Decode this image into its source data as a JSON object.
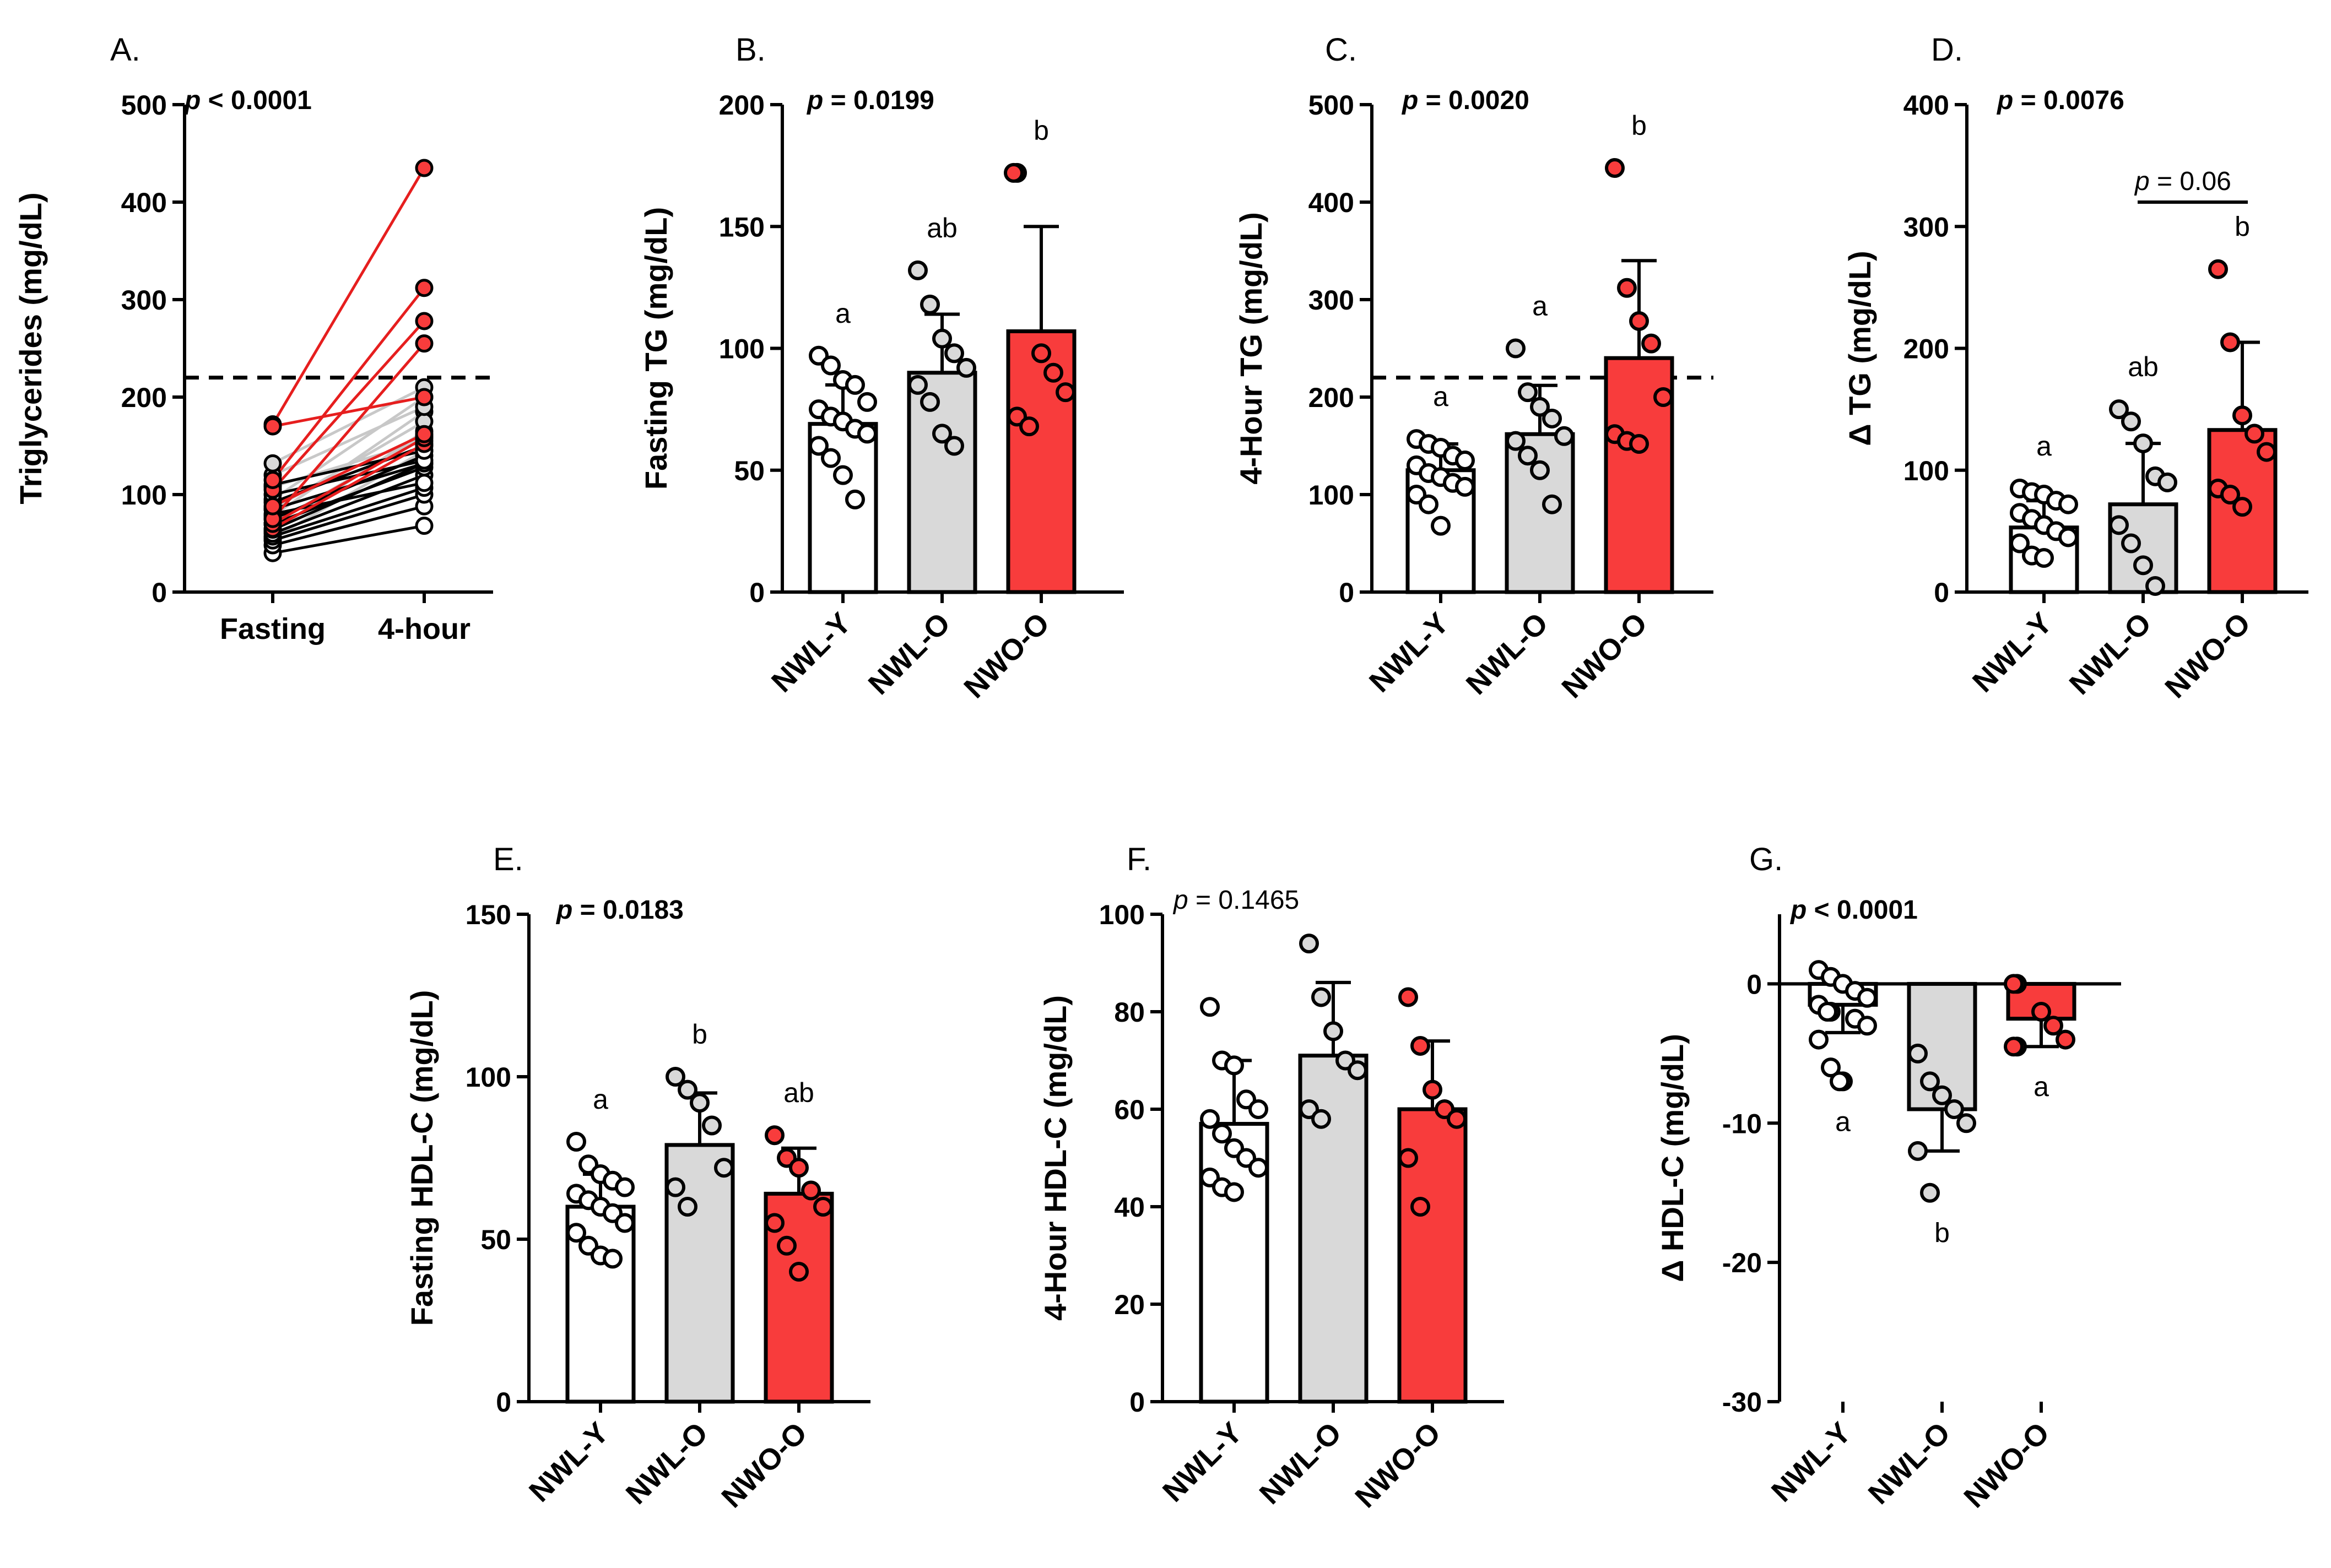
{
  "figure": {
    "colors": {
      "NWL-Y": "#ffffff",
      "NWL-O": "#d9d9d9",
      "NWO-O": "#f83c3c",
      "axis": "#000000",
      "line_dark": "#000000",
      "line_grey": "#c8c8c8",
      "line_red": "#e61e1e"
    }
  },
  "chart_data": [
    {
      "panel": "A.",
      "type": "line",
      "title": "",
      "ylabel": "Triglycerides (mg/dL)",
      "xlabel": "",
      "categories": [
        "Fasting",
        "4-hour"
      ],
      "ylim": [
        0,
        500
      ],
      "yticks": [
        0,
        100,
        200,
        300,
        400,
        500
      ],
      "p_text": "p < 0.0001",
      "p_bold": true,
      "reference_line": 220,
      "series": [
        {
          "group": "NWL-Y",
          "values": [
            [
              40,
              68
            ],
            [
              48,
              88
            ],
            [
              53,
              100
            ],
            [
              57,
              107
            ],
            [
              60,
              120
            ],
            [
              64,
              132
            ],
            [
              70,
              128
            ],
            [
              75,
              140
            ],
            [
              80,
              112
            ],
            [
              85,
              132
            ],
            [
              92,
              150
            ],
            [
              100,
              135
            ],
            [
              110,
              145
            ]
          ]
        },
        {
          "group": "NWL-O",
          "values": [
            [
              55,
              145
            ],
            [
              62,
              165
            ],
            [
              70,
              160
            ],
            [
              78,
              185
            ],
            [
              85,
              175
            ],
            [
              95,
              200
            ],
            [
              108,
              155
            ],
            [
              120,
              190
            ],
            [
              132,
              210
            ]
          ]
        },
        {
          "group": "NWO-O",
          "values": [
            [
              65,
              152
            ],
            [
              70,
              158
            ],
            [
              75,
              255
            ],
            [
              88,
              162
            ],
            [
              105,
              278
            ],
            [
              115,
              312
            ],
            [
              172,
              435
            ],
            [
              170,
              200
            ]
          ]
        }
      ]
    },
    {
      "panel": "B.",
      "type": "bar",
      "title": "",
      "ylabel": "Fasting TG (mg/dL)",
      "xlabel": "",
      "categories": [
        "NWL-Y",
        "NWL-O",
        "NWO-O"
      ],
      "ylim": [
        0,
        200
      ],
      "yticks": [
        0,
        50,
        100,
        150,
        200
      ],
      "p_text": "p = 0.0199",
      "p_bold": true,
      "series": [
        {
          "name": "NWL-Y",
          "mean": 69,
          "sd": 16,
          "letter": "a",
          "points": [
            97,
            93,
            87,
            85,
            78,
            75,
            72,
            70,
            67,
            65,
            60,
            55,
            48,
            38
          ]
        },
        {
          "name": "NWL-O",
          "mean": 90,
          "sd": 24,
          "letter": "ab",
          "points": [
            132,
            118,
            104,
            98,
            92,
            85,
            78,
            65,
            60
          ]
        },
        {
          "name": "NWO-O",
          "mean": 107,
          "sd": 43,
          "letter": "b",
          "points": [
            172,
            172,
            98,
            90,
            82,
            72,
            68
          ]
        }
      ]
    },
    {
      "panel": "C.",
      "type": "bar",
      "title": "",
      "ylabel": "4-Hour TG (mg/dL)",
      "xlabel": "",
      "categories": [
        "NWL-Y",
        "NWL-O",
        "NWO-O"
      ],
      "ylim": [
        0,
        500
      ],
      "yticks": [
        0,
        100,
        200,
        300,
        400,
        500
      ],
      "p_text": "p = 0.0020",
      "p_bold": true,
      "reference_line": 220,
      "series": [
        {
          "name": "NWL-Y",
          "mean": 125,
          "sd": 27,
          "letter": "a",
          "points": [
            157,
            152,
            148,
            140,
            135,
            130,
            122,
            118,
            112,
            108,
            100,
            90,
            68
          ]
        },
        {
          "name": "NWL-O",
          "mean": 162,
          "sd": 50,
          "letter": "a",
          "points": [
            250,
            205,
            190,
            178,
            160,
            155,
            140,
            125,
            90
          ]
        },
        {
          "name": "NWO-O",
          "mean": 240,
          "sd": 100,
          "letter": "b",
          "points": [
            435,
            312,
            278,
            255,
            200,
            162,
            155,
            152
          ]
        }
      ]
    },
    {
      "panel": "D.",
      "type": "bar",
      "title": "",
      "ylabel": "Δ TG (mg/dL)",
      "xlabel": "",
      "categories": [
        "NWL-Y",
        "NWL-O",
        "NWO-O"
      ],
      "ylim": [
        0,
        400
      ],
      "yticks": [
        0,
        100,
        200,
        300,
        400
      ],
      "p_text": "p = 0.0076",
      "p_bold": true,
      "comparison": {
        "from": "NWL-O",
        "to": "NWO-O",
        "text": "p = 0.06"
      },
      "series": [
        {
          "name": "NWL-Y",
          "mean": 53,
          "sd": 22,
          "letter": "a",
          "points": [
            85,
            82,
            80,
            75,
            72,
            65,
            60,
            55,
            50,
            45,
            40,
            30,
            28
          ]
        },
        {
          "name": "NWL-O",
          "mean": 72,
          "sd": 50,
          "letter": "ab",
          "points": [
            150,
            140,
            122,
            95,
            90,
            55,
            40,
            22,
            5
          ]
        },
        {
          "name": "NWO-O",
          "mean": 133,
          "sd": 72,
          "letter": "b",
          "points": [
            265,
            205,
            145,
            130,
            115,
            85,
            80,
            70
          ]
        }
      ]
    },
    {
      "panel": "E.",
      "type": "bar",
      "title": "",
      "ylabel": "Fasting HDL-C (mg/dL)",
      "xlabel": "",
      "categories": [
        "NWL-Y",
        "NWL-O",
        "NWO-O"
      ],
      "ylim": [
        0,
        150
      ],
      "yticks": [
        0,
        50,
        100,
        150
      ],
      "p_text": "p = 0.0183",
      "p_bold": true,
      "series": [
        {
          "name": "NWL-Y",
          "mean": 60,
          "sd": 10,
          "letter": "a",
          "points": [
            80,
            73,
            70,
            68,
            66,
            64,
            62,
            60,
            58,
            55,
            52,
            48,
            45,
            44
          ]
        },
        {
          "name": "NWL-O",
          "mean": 79,
          "sd": 16,
          "letter": "b",
          "points": [
            100,
            96,
            92,
            85,
            72,
            66,
            60
          ]
        },
        {
          "name": "NWO-O",
          "mean": 64,
          "sd": 14,
          "letter": "ab",
          "points": [
            82,
            75,
            72,
            65,
            60,
            55,
            48,
            40
          ]
        }
      ]
    },
    {
      "panel": "F.",
      "type": "bar",
      "title": "",
      "ylabel": "4-Hour HDL-C (mg/dL)",
      "xlabel": "",
      "categories": [
        "NWL-Y",
        "NWL-O",
        "NWO-O"
      ],
      "ylim": [
        0,
        100
      ],
      "yticks": [
        0,
        20,
        40,
        60,
        80,
        100
      ],
      "p_text": "p = 0.1465",
      "p_bold": false,
      "series": [
        {
          "name": "NWL-Y",
          "mean": 57,
          "sd": 13,
          "letter": "",
          "points": [
            81,
            70,
            69,
            62,
            60,
            58,
            55,
            52,
            50,
            48,
            46,
            44,
            43
          ]
        },
        {
          "name": "NWL-O",
          "mean": 71,
          "sd": 15,
          "letter": "",
          "points": [
            94,
            83,
            76,
            70,
            68,
            60,
            58
          ]
        },
        {
          "name": "NWO-O",
          "mean": 60,
          "sd": 14,
          "letter": "",
          "points": [
            83,
            73,
            64,
            60,
            58,
            50,
            40
          ]
        }
      ]
    },
    {
      "panel": "G.",
      "type": "bar",
      "title": "",
      "ylabel": "Δ HDL-C (mg/dL)",
      "xlabel": "",
      "categories": [
        "NWL-Y",
        "NWL-O",
        "NWO-O"
      ],
      "ylim": [
        -30,
        5
      ],
      "yticks": [
        0,
        -10,
        -20,
        -30
      ],
      "p_text": "p < 0.0001",
      "p_bold": true,
      "series": [
        {
          "name": "NWL-Y",
          "mean": -1.5,
          "sd": 2.0,
          "letter": "a",
          "points": [
            1,
            0.5,
            0,
            -0.5,
            -1,
            -1.5,
            -2,
            -2,
            -2.5,
            -3,
            -4,
            -6,
            -7,
            -7
          ]
        },
        {
          "name": "NWL-O",
          "mean": -9,
          "sd": 3.0,
          "letter": "b",
          "points": [
            -5,
            -7,
            -8,
            -9,
            -10,
            -12,
            -15
          ]
        },
        {
          "name": "NWO-O",
          "mean": -2.5,
          "sd": 2.0,
          "letter": "a",
          "points": [
            0,
            0,
            -2,
            -3,
            -4,
            -4.5,
            -4.5
          ]
        }
      ]
    }
  ]
}
